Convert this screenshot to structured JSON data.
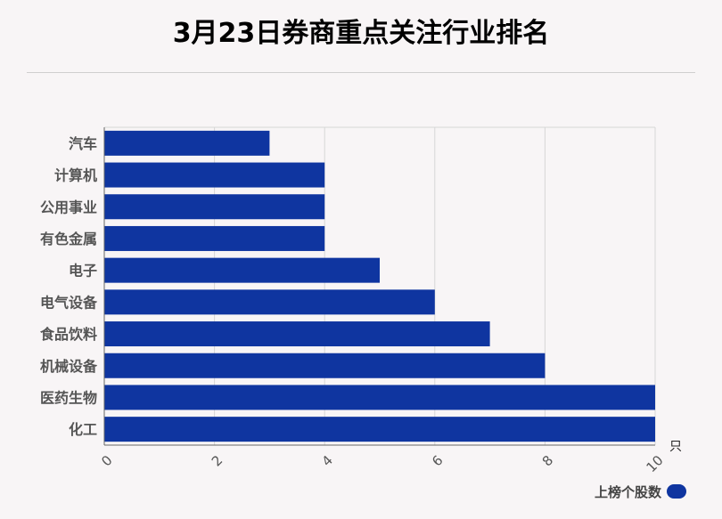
{
  "chart_data": {
    "type": "bar",
    "orientation": "horizontal",
    "title": "3月23日券商重点关注行业排名",
    "categories": [
      "汽车",
      "计算机",
      "公用事业",
      "有色金属",
      "电子",
      "电气设备",
      "食品饮料",
      "机械设备",
      "医药生物",
      "化工"
    ],
    "series": [
      {
        "name": "上榜个股数",
        "values": [
          3,
          4,
          4,
          4,
          5,
          6,
          7,
          8,
          10,
          10
        ]
      }
    ],
    "xlim": [
      0,
      10
    ],
    "x_ticks": [
      "0",
      "2",
      "4",
      "6",
      "8",
      "10"
    ],
    "x_unit": "只",
    "grid": true,
    "legend_position": "bottom-right",
    "bar_color": "#0f35a0"
  }
}
